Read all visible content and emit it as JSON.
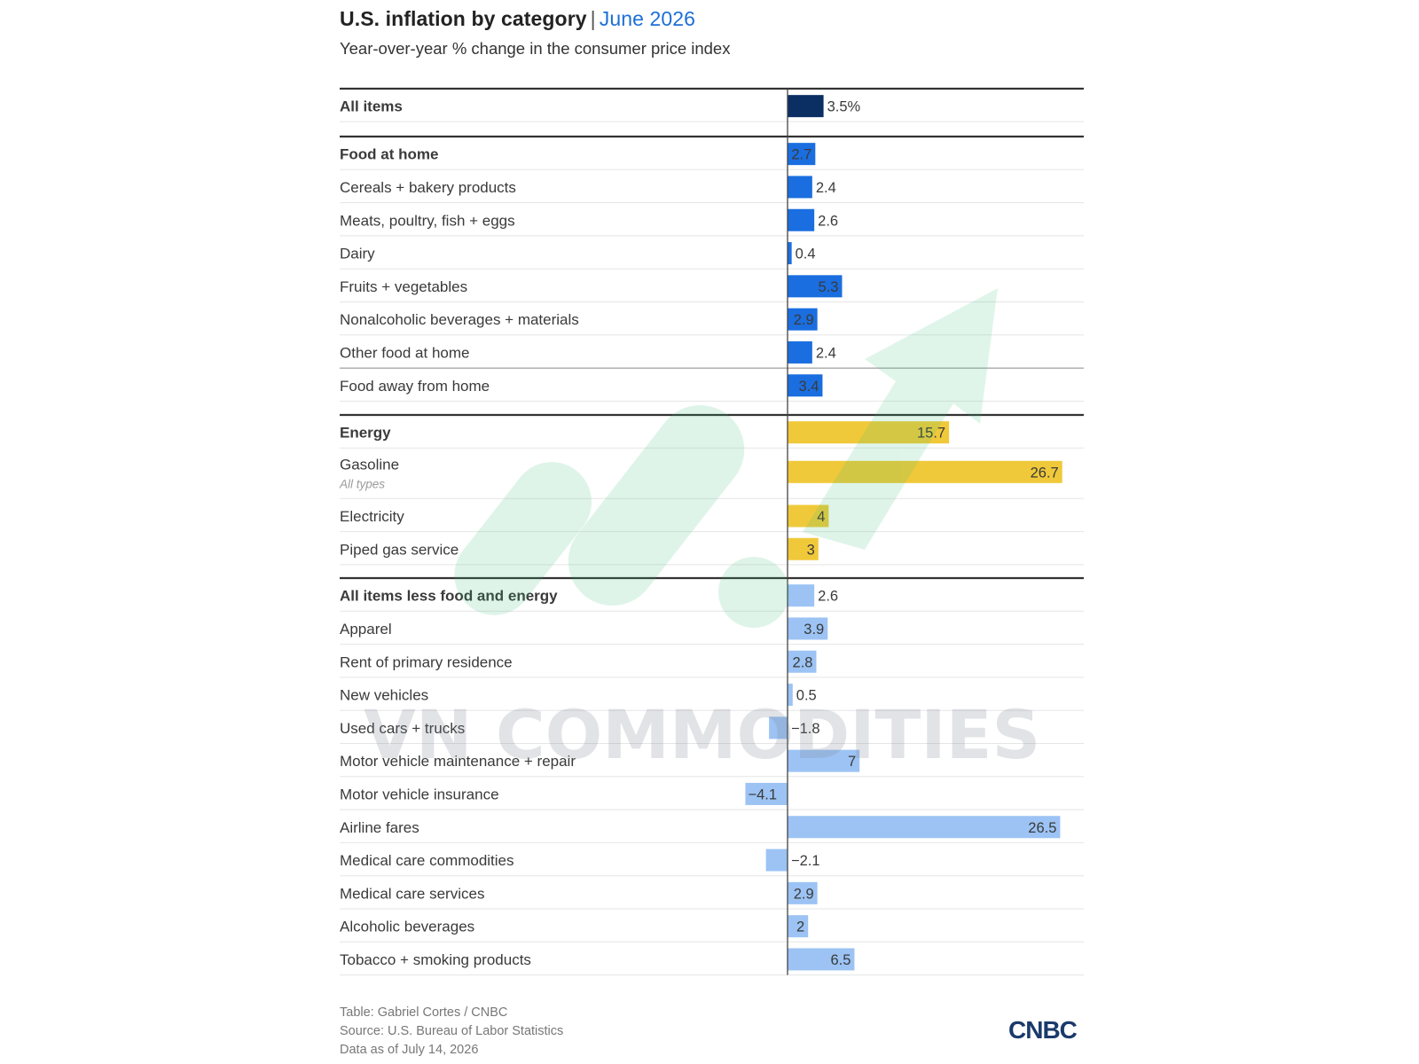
{
  "header": {
    "title": "U.S. inflation by category",
    "separator": "|",
    "date": "June 2026",
    "subtitle": "Year-over-year % change in the consumer price index"
  },
  "colors": {
    "all_items": "#0b2f63",
    "food": "#1a6ee0",
    "energy": "#f0c93a",
    "core": "#9cc3f4",
    "all_items_label": "#0b2f63",
    "food_label": "#1a5fbf",
    "energy_label": "#d7a21a",
    "core_label": "#6b9fd6"
  },
  "chart_data": {
    "type": "bar",
    "orientation": "horizontal",
    "groups": [
      {
        "name": "all",
        "rows": [
          {
            "label": "All items",
            "value": 3.5,
            "display": "3.5%",
            "header": true
          }
        ]
      },
      {
        "name": "food",
        "rows": [
          {
            "label": "Food at home",
            "value": 2.7,
            "display": "2.7",
            "header": true
          },
          {
            "label": "Cereals + bakery products",
            "value": 2.4,
            "display": "2.4"
          },
          {
            "label": "Meats, poultry, fish + eggs",
            "value": 2.6,
            "display": "2.6"
          },
          {
            "label": "Dairy",
            "value": 0.4,
            "display": "0.4"
          },
          {
            "label": "Fruits + vegetables",
            "value": 5.3,
            "display": "5.3"
          },
          {
            "label": "Nonalcoholic beverages + materials",
            "value": 2.9,
            "display": "2.9"
          },
          {
            "label": "Other food at home",
            "value": 2.4,
            "display": "2.4"
          },
          {
            "label": "Food away from home",
            "value": 3.4,
            "display": "3.4"
          }
        ]
      },
      {
        "name": "energy",
        "rows": [
          {
            "label": "Energy",
            "value": 15.7,
            "display": "15.7",
            "header": true
          },
          {
            "label": "Gasoline",
            "note": "All types",
            "value": 26.7,
            "display": "26.7"
          },
          {
            "label": "Electricity",
            "value": 4,
            "display": "4"
          },
          {
            "label": "Piped gas service",
            "value": 3,
            "display": "3"
          }
        ]
      },
      {
        "name": "core",
        "rows": [
          {
            "label": "All items less food and energy",
            "value": 2.6,
            "display": "2.6",
            "header": true
          },
          {
            "label": "Apparel",
            "value": 3.9,
            "display": "3.9"
          },
          {
            "label": "Rent of primary residence",
            "value": 2.8,
            "display": "2.8"
          },
          {
            "label": "New vehicles",
            "value": 0.5,
            "display": "0.5"
          },
          {
            "label": "Used cars + trucks",
            "value": -1.8,
            "display": "−1.8"
          },
          {
            "label": "Motor vehicle maintenance + repair",
            "value": 7,
            "display": "7"
          },
          {
            "label": "Motor vehicle insurance",
            "value": -4.1,
            "display": "−4.1"
          },
          {
            "label": "Airline fares",
            "value": 26.5,
            "display": "26.5"
          },
          {
            "label": "Medical care commodities",
            "value": -2.1,
            "display": "−2.1"
          },
          {
            "label": "Medical care services",
            "value": 2.9,
            "display": "2.9"
          },
          {
            "label": "Alcoholic beverages",
            "value": 2,
            "display": "2"
          },
          {
            "label": "Tobacco + smoking products",
            "value": 6.5,
            "display": "6.5"
          }
        ]
      }
    ]
  },
  "footer": {
    "credit": "Table: Gabriel Cortes / CNBC",
    "source": "Source: U.S. Bureau of Labor Statistics",
    "asof": "Data as of July 14, 2026"
  },
  "logo": {
    "text": "CNBC"
  },
  "watermark": {
    "text": "VN COMMODITIES"
  }
}
